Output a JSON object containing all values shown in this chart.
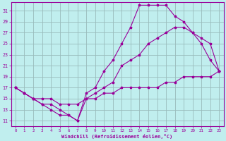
{
  "bg_color": "#c0eeee",
  "line_color": "#990099",
  "grid_color": "#99bbbb",
  "xlabel": "Windchill (Refroidissement éolien,°C)",
  "xlim": [
    -0.5,
    23.5
  ],
  "ylim": [
    10,
    32.5
  ],
  "xticks": [
    0,
    1,
    2,
    3,
    4,
    5,
    6,
    7,
    8,
    9,
    10,
    11,
    12,
    13,
    14,
    15,
    16,
    17,
    18,
    19,
    20,
    21,
    22,
    23
  ],
  "yticks": [
    11,
    13,
    15,
    17,
    19,
    21,
    23,
    25,
    27,
    29,
    31
  ],
  "line1_x": [
    0,
    1,
    2,
    3,
    4,
    5,
    6,
    7,
    8,
    9,
    10,
    11,
    12,
    13,
    14,
    15,
    16,
    17,
    18,
    19,
    20,
    21,
    22,
    23
  ],
  "line1_y": [
    17,
    16,
    15,
    14,
    13,
    12,
    12,
    11,
    16,
    17,
    20,
    22,
    25,
    28,
    32,
    32,
    32,
    32,
    30,
    29,
    27,
    25,
    22,
    20
  ],
  "line2_x": [
    0,
    1,
    2,
    3,
    4,
    5,
    6,
    7,
    8,
    9,
    10,
    11,
    12,
    13,
    14,
    15,
    16,
    17,
    18,
    19,
    20,
    21,
    22,
    23
  ],
  "line2_y": [
    17,
    16,
    15,
    14,
    14,
    13,
    12,
    11,
    15,
    16,
    17,
    18,
    21,
    22,
    23,
    25,
    26,
    27,
    28,
    28,
    27,
    26,
    25,
    20
  ],
  "line3_x": [
    0,
    1,
    2,
    3,
    4,
    5,
    6,
    7,
    8,
    9,
    10,
    11,
    12,
    13,
    14,
    15,
    16,
    17,
    18,
    19,
    20,
    21,
    22,
    23
  ],
  "line3_y": [
    17,
    16,
    15,
    15,
    15,
    14,
    14,
    14,
    15,
    15,
    16,
    16,
    17,
    17,
    17,
    17,
    17,
    18,
    18,
    19,
    19,
    19,
    19,
    20
  ]
}
